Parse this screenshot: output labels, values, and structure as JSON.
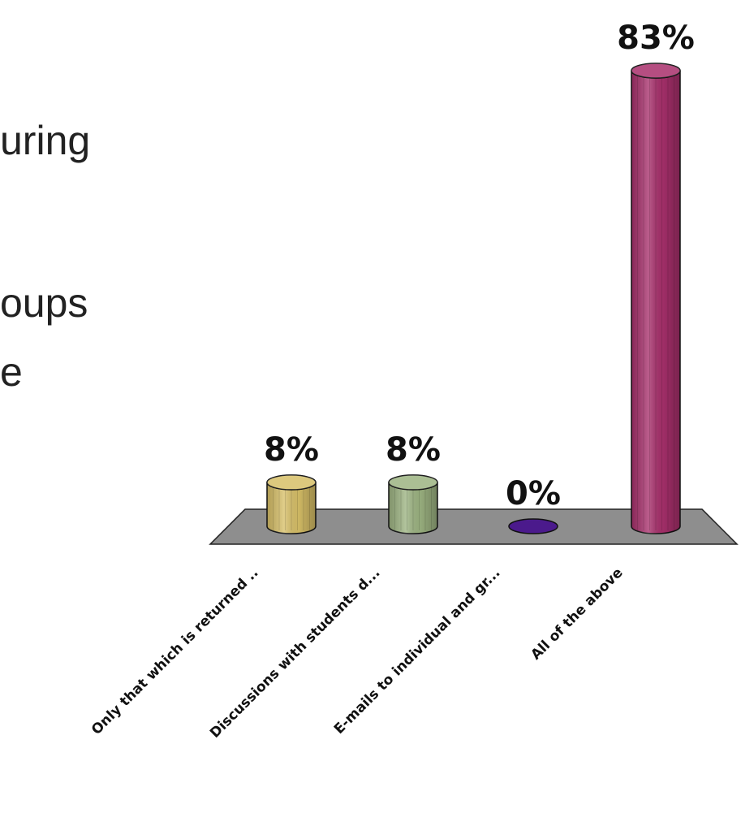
{
  "background_text": [
    "uring",
    "oups",
    "e"
  ],
  "chart_data": {
    "type": "bar",
    "style": "3d-cylinder",
    "categories": [
      "Only that which is returned ..",
      "Discussions with students d...",
      "E-mails to individual and gr...",
      "All of the above"
    ],
    "values": [
      8,
      8,
      0,
      83
    ],
    "value_labels": [
      "8%",
      "8%",
      "0%",
      "83%"
    ],
    "colors": [
      "#d8c068",
      "#9db482",
      "#4b1a8c",
      "#a8306c"
    ],
    "floor_color": "#8e8e8e",
    "ylim": [
      0,
      83
    ],
    "grid": false,
    "legend": "none"
  }
}
